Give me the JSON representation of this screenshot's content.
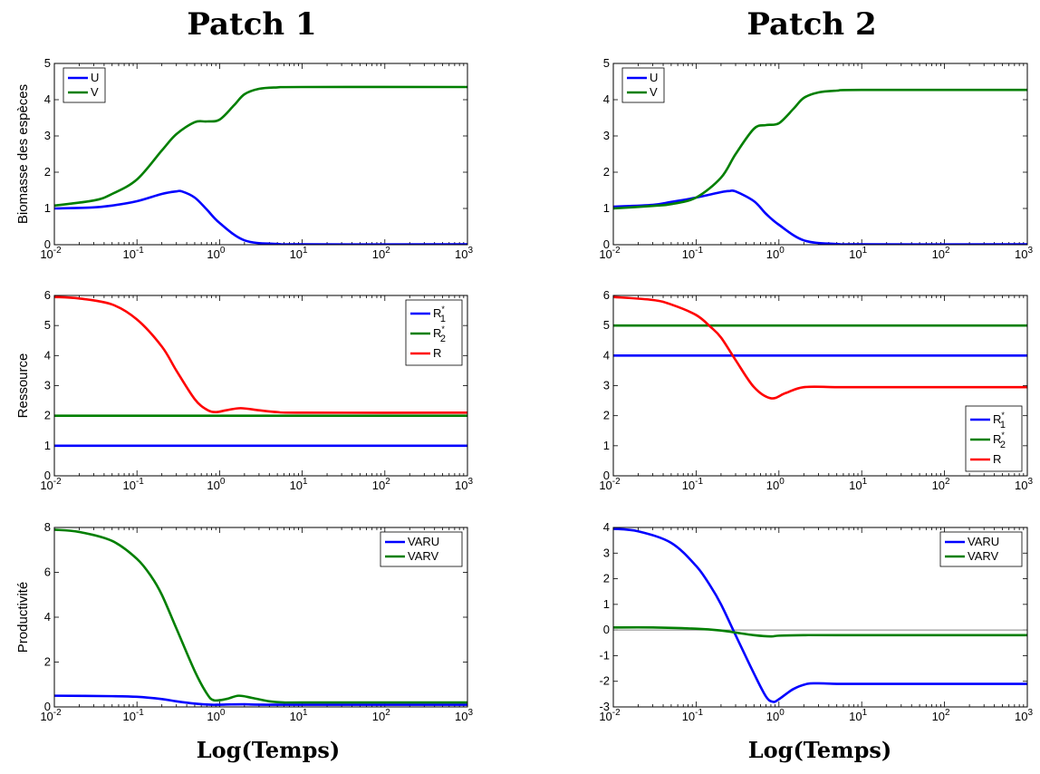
{
  "column_titles": [
    "Patch 1",
    "Patch 2"
  ],
  "x_title": "Log(Temps)",
  "row_labels": [
    "Biomasse des espèces",
    "Ressource",
    "Productivité"
  ],
  "colors": {
    "blue": "#0000ff",
    "green": "#007f00",
    "red": "#ff0000",
    "zero_line": "#808080"
  },
  "chart_data": [
    {
      "type": "line",
      "row": 0,
      "col": 0,
      "xscale": "log",
      "xlim": [
        0.01,
        1000
      ],
      "ylim": [
        0,
        5
      ],
      "xticks": [
        0.01,
        0.1,
        1,
        10,
        100,
        1000
      ],
      "xtick_labels": [
        {
          "base": "10",
          "exp": "-2"
        },
        {
          "base": "10",
          "exp": "-1"
        },
        {
          "base": "10",
          "exp": "0"
        },
        {
          "base": "10",
          "exp": "1"
        },
        {
          "base": "10",
          "exp": "2"
        },
        {
          "base": "10",
          "exp": "3"
        }
      ],
      "yticks": [
        0,
        1,
        2,
        3,
        4,
        5
      ],
      "ylabel": "Biomasse des espèces",
      "legend": "top-left",
      "series": [
        {
          "name": "U",
          "color": "#0000ff",
          "x": [
            0.01,
            0.03,
            0.05,
            0.1,
            0.2,
            0.3,
            0.35,
            0.5,
            0.7,
            1,
            2,
            5,
            10,
            1000
          ],
          "y": [
            1.0,
            1.03,
            1.08,
            1.2,
            1.4,
            1.47,
            1.47,
            1.3,
            0.97,
            0.6,
            0.12,
            0.02,
            0.01,
            0.01
          ]
        },
        {
          "name": "V",
          "color": "#007f00",
          "x": [
            0.01,
            0.03,
            0.05,
            0.1,
            0.2,
            0.3,
            0.5,
            0.7,
            1,
            1.5,
            2,
            3,
            5,
            10,
            1000
          ],
          "y": [
            1.08,
            1.22,
            1.4,
            1.8,
            2.6,
            3.05,
            3.38,
            3.4,
            3.45,
            3.85,
            4.15,
            4.3,
            4.34,
            4.35,
            4.35
          ]
        }
      ]
    },
    {
      "type": "line",
      "row": 0,
      "col": 1,
      "xscale": "log",
      "xlim": [
        0.01,
        1000
      ],
      "ylim": [
        0,
        5
      ],
      "xticks": [
        0.01,
        0.1,
        1,
        10,
        100,
        1000
      ],
      "xtick_labels": [
        {
          "base": "10",
          "exp": "-2"
        },
        {
          "base": "10",
          "exp": "-1"
        },
        {
          "base": "10",
          "exp": "0"
        },
        {
          "base": "10",
          "exp": "1"
        },
        {
          "base": "10",
          "exp": "2"
        },
        {
          "base": "10",
          "exp": "3"
        }
      ],
      "yticks": [
        0,
        1,
        2,
        3,
        4,
        5
      ],
      "ylabel": "",
      "legend": "top-left",
      "series": [
        {
          "name": "U",
          "color": "#0000ff",
          "x": [
            0.01,
            0.03,
            0.05,
            0.1,
            0.2,
            0.25,
            0.3,
            0.5,
            0.7,
            1,
            2,
            5,
            10,
            1000
          ],
          "y": [
            1.05,
            1.1,
            1.18,
            1.3,
            1.45,
            1.48,
            1.47,
            1.2,
            0.85,
            0.55,
            0.12,
            0.02,
            0.01,
            0.01
          ]
        },
        {
          "name": "V",
          "color": "#007f00",
          "x": [
            0.01,
            0.03,
            0.05,
            0.1,
            0.2,
            0.3,
            0.5,
            0.7,
            1,
            1.5,
            2,
            3,
            5,
            10,
            1000
          ],
          "y": [
            1.0,
            1.07,
            1.12,
            1.3,
            1.85,
            2.5,
            3.2,
            3.3,
            3.35,
            3.75,
            4.05,
            4.2,
            4.25,
            4.27,
            4.27
          ]
        }
      ]
    },
    {
      "type": "line",
      "row": 1,
      "col": 0,
      "xscale": "log",
      "xlim": [
        0.01,
        1000
      ],
      "ylim": [
        0,
        6
      ],
      "xticks": [
        0.01,
        0.1,
        1,
        10,
        100,
        1000
      ],
      "xtick_labels": [
        {
          "base": "10",
          "exp": "-2"
        },
        {
          "base": "10",
          "exp": "-1"
        },
        {
          "base": "10",
          "exp": "0"
        },
        {
          "base": "10",
          "exp": "1"
        },
        {
          "base": "10",
          "exp": "2"
        },
        {
          "base": "10",
          "exp": "3"
        }
      ],
      "yticks": [
        0,
        1,
        2,
        3,
        4,
        5,
        6
      ],
      "ylabel": "Ressource",
      "legend": "top-right",
      "series": [
        {
          "name": "R",
          "name_sub": "1",
          "name_sup": "*",
          "color": "#0000ff",
          "x": [
            0.01,
            1000
          ],
          "y": [
            1,
            1
          ]
        },
        {
          "name": "R",
          "name_sub": "2",
          "name_sup": "*",
          "color": "#007f00",
          "x": [
            0.01,
            1000
          ],
          "y": [
            2,
            2
          ]
        },
        {
          "name": "R",
          "color": "#ff0000",
          "x": [
            0.01,
            0.02,
            0.05,
            0.1,
            0.2,
            0.3,
            0.5,
            0.7,
            0.9,
            1.2,
            1.8,
            3,
            5,
            10,
            1000
          ],
          "y": [
            5.95,
            5.9,
            5.7,
            5.2,
            4.3,
            3.5,
            2.55,
            2.2,
            2.12,
            2.18,
            2.25,
            2.18,
            2.12,
            2.1,
            2.1
          ]
        }
      ]
    },
    {
      "type": "line",
      "row": 1,
      "col": 1,
      "xscale": "log",
      "xlim": [
        0.01,
        1000
      ],
      "ylim": [
        0,
        6
      ],
      "xticks": [
        0.01,
        0.1,
        1,
        10,
        100,
        1000
      ],
      "xtick_labels": [
        {
          "base": "10",
          "exp": "-2"
        },
        {
          "base": "10",
          "exp": "-1"
        },
        {
          "base": "10",
          "exp": "0"
        },
        {
          "base": "10",
          "exp": "1"
        },
        {
          "base": "10",
          "exp": "2"
        },
        {
          "base": "10",
          "exp": "3"
        }
      ],
      "yticks": [
        0,
        1,
        2,
        3,
        4,
        5,
        6
      ],
      "ylabel": "",
      "legend": "bottom-right",
      "series": [
        {
          "name": "R",
          "name_sub": "1",
          "name_sup": "*",
          "color": "#0000ff",
          "x": [
            0.01,
            1000
          ],
          "y": [
            4,
            4
          ]
        },
        {
          "name": "R",
          "name_sub": "2",
          "name_sup": "*",
          "color": "#007f00",
          "x": [
            0.01,
            1000
          ],
          "y": [
            5,
            5
          ]
        },
        {
          "name": "R",
          "color": "#ff0000",
          "x": [
            0.01,
            0.03,
            0.05,
            0.1,
            0.15,
            0.2,
            0.3,
            0.5,
            0.8,
            1.2,
            2,
            5,
            10,
            1000
          ],
          "y": [
            5.95,
            5.85,
            5.7,
            5.35,
            4.95,
            4.6,
            3.85,
            2.95,
            2.58,
            2.75,
            2.95,
            2.95,
            2.95,
            2.95
          ]
        }
      ]
    },
    {
      "type": "line",
      "row": 2,
      "col": 0,
      "xscale": "log",
      "xlim": [
        0.01,
        1000
      ],
      "ylim": [
        0,
        8
      ],
      "xticks": [
        0.01,
        0.1,
        1,
        10,
        100,
        1000
      ],
      "xtick_labels": [
        {
          "base": "10",
          "exp": "-2"
        },
        {
          "base": "10",
          "exp": "-1"
        },
        {
          "base": "10",
          "exp": "0"
        },
        {
          "base": "10",
          "exp": "1"
        },
        {
          "base": "10",
          "exp": "2"
        },
        {
          "base": "10",
          "exp": "3"
        }
      ],
      "yticks": [
        0,
        2,
        4,
        6,
        8
      ],
      "ylabel": "Productivité",
      "legend": "top-right",
      "series": [
        {
          "name": "VARU",
          "color": "#0000ff",
          "x": [
            0.01,
            0.05,
            0.1,
            0.2,
            0.3,
            0.5,
            0.8,
            1,
            2,
            5,
            1000
          ],
          "y": [
            0.5,
            0.48,
            0.45,
            0.35,
            0.25,
            0.15,
            0.1,
            0.1,
            0.12,
            0.1,
            0.1
          ]
        },
        {
          "name": "VARV",
          "color": "#007f00",
          "x": [
            0.01,
            0.02,
            0.05,
            0.1,
            0.15,
            0.2,
            0.3,
            0.5,
            0.7,
            0.85,
            1.2,
            1.7,
            2.5,
            4,
            6,
            10,
            1000
          ],
          "y": [
            7.9,
            7.8,
            7.4,
            6.6,
            5.8,
            5.0,
            3.5,
            1.6,
            0.6,
            0.3,
            0.35,
            0.5,
            0.4,
            0.25,
            0.2,
            0.2,
            0.2
          ]
        }
      ]
    },
    {
      "type": "line",
      "row": 2,
      "col": 1,
      "xscale": "log",
      "xlim": [
        0.01,
        1000
      ],
      "ylim": [
        -3,
        4
      ],
      "xticks": [
        0.01,
        0.1,
        1,
        10,
        100,
        1000
      ],
      "xtick_labels": [
        {
          "base": "10",
          "exp": "-2"
        },
        {
          "base": "10",
          "exp": "-1"
        },
        {
          "base": "10",
          "exp": "0"
        },
        {
          "base": "10",
          "exp": "1"
        },
        {
          "base": "10",
          "exp": "2"
        },
        {
          "base": "10",
          "exp": "3"
        }
      ],
      "yticks": [
        -3,
        -2,
        -1,
        0,
        1,
        2,
        3,
        4
      ],
      "ylabel": "",
      "legend": "top-right",
      "zero_line": true,
      "series": [
        {
          "name": "VARU",
          "color": "#0000ff",
          "x": [
            0.01,
            0.02,
            0.05,
            0.1,
            0.15,
            0.2,
            0.3,
            0.5,
            0.7,
            0.85,
            1,
            1.5,
            2.2,
            3,
            5,
            10,
            1000
          ],
          "y": [
            3.95,
            3.85,
            3.4,
            2.5,
            1.7,
            1.0,
            -0.2,
            -1.7,
            -2.6,
            -2.8,
            -2.7,
            -2.3,
            -2.1,
            -2.08,
            -2.1,
            -2.1,
            -2.1
          ]
        },
        {
          "name": "VARV",
          "color": "#007f00",
          "x": [
            0.01,
            0.03,
            0.1,
            0.2,
            0.3,
            0.5,
            0.8,
            1,
            2,
            5,
            1000
          ],
          "y": [
            0.1,
            0.1,
            0.05,
            -0.02,
            -0.1,
            -0.2,
            -0.25,
            -0.22,
            -0.2,
            -0.2,
            -0.2
          ]
        }
      ]
    }
  ]
}
